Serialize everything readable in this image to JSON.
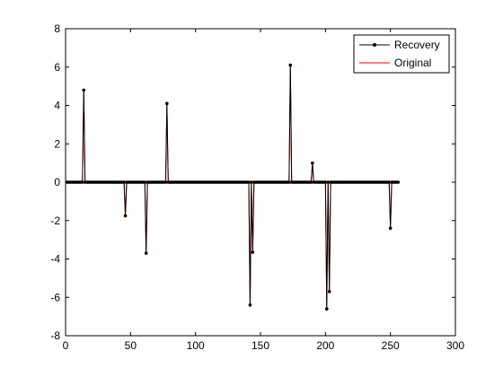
{
  "chart_data": {
    "type": "line",
    "title": "",
    "xlabel": "",
    "ylabel": "",
    "xlim": [
      0,
      300
    ],
    "ylim": [
      -8,
      8
    ],
    "x_ticks": [
      0,
      50,
      100,
      150,
      200,
      250,
      300
    ],
    "y_ticks": [
      -8,
      -6,
      -4,
      -2,
      0,
      2,
      4,
      6,
      8
    ],
    "x_tick_labels": [
      "0",
      "50",
      "100",
      "150",
      "200",
      "250",
      "300"
    ],
    "y_tick_labels": [
      "-8",
      "-6",
      "-4",
      "-2",
      "0",
      "2",
      "4",
      "6",
      "8"
    ],
    "n_points": 256,
    "grid": false,
    "legend_position": "top-right",
    "series": [
      {
        "name": "Recovery",
        "color": "#000000",
        "marker": "dot",
        "spikes": [
          [
            14,
            4.8
          ],
          [
            46,
            -1.75
          ],
          [
            62,
            -3.7
          ],
          [
            78,
            4.1
          ],
          [
            142,
            -6.4
          ],
          [
            144,
            -3.65
          ],
          [
            173,
            6.1
          ],
          [
            190,
            1.0
          ],
          [
            201,
            -6.6
          ],
          [
            203,
            -5.7
          ],
          [
            250,
            -2.4
          ]
        ]
      },
      {
        "name": "Original",
        "color": "#ff0000",
        "marker": "none",
        "spikes": [
          [
            14,
            4.8
          ],
          [
            46,
            -1.75
          ],
          [
            62,
            -3.7
          ],
          [
            78,
            4.1
          ],
          [
            142,
            -6.4
          ],
          [
            144,
            -3.65
          ],
          [
            173,
            6.1
          ],
          [
            190,
            1.0
          ],
          [
            201,
            -6.6
          ],
          [
            203,
            -5.7
          ],
          [
            250,
            -2.4
          ]
        ]
      }
    ]
  }
}
